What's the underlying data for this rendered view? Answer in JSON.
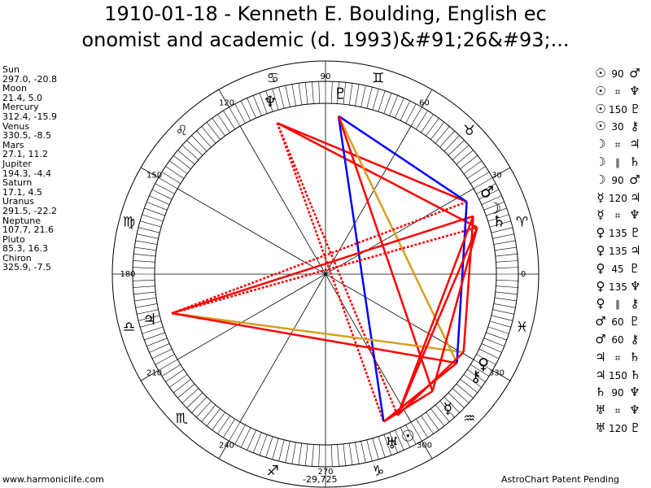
{
  "title_line1": "1910-01-18 - Kenneth E. Boulding, English ec",
  "title_line2": "onomist and academic (d. 1993)&#91;26&#93;...",
  "planets": [
    {
      "name": "Sun",
      "coords": "297.0, -20.8",
      "longitude": 297.0
    },
    {
      "name": "Moon",
      "coords": "21.4, 5.0",
      "longitude": 21.4
    },
    {
      "name": "Mercury",
      "coords": "312.4, -15.9",
      "longitude": 312.4
    },
    {
      "name": "Venus",
      "coords": "330.5, -8.5",
      "longitude": 330.5
    },
    {
      "name": "Mars",
      "coords": "27.1, 11.2",
      "longitude": 27.1
    },
    {
      "name": "Jupiter",
      "coords": "194.3, -4.4",
      "longitude": 194.3
    },
    {
      "name": "Saturn",
      "coords": "17.1, 4.5",
      "longitude": 17.1
    },
    {
      "name": "Uranus",
      "coords": "291.5, -22.2",
      "longitude": 291.5
    },
    {
      "name": "Neptune",
      "coords": "107.7, 21.6",
      "longitude": 107.7
    },
    {
      "name": "Pluto",
      "coords": "85.3, 16.3",
      "longitude": 85.3
    },
    {
      "name": "Chiron",
      "coords": "325.9, -7.5",
      "longitude": 325.9
    }
  ],
  "planet_glyphs": {
    "Sun": "☉",
    "Moon": "☽",
    "Mercury": "☿",
    "Venus": "♀",
    "Mars": "♂",
    "Jupiter": "♃",
    "Saturn": "♄",
    "Uranus": "♅",
    "Neptune": "♆",
    "Pluto": "♇",
    "Chiron": "⚷"
  },
  "aspect_glyphs": {
    "90": "90",
    "150": "150",
    "30": "30",
    "120": "120",
    "135": "135",
    "45": "45",
    "60": "60",
    "par": "⌗",
    "cpar": "∥"
  },
  "aspects": [
    {
      "p1": "Sun",
      "type": "90",
      "p2": "Mars"
    },
    {
      "p1": "Sun",
      "type": "par",
      "p2": "Neptune"
    },
    {
      "p1": "Sun",
      "type": "150",
      "p2": "Pluto"
    },
    {
      "p1": "Sun",
      "type": "30",
      "p2": "Chiron"
    },
    {
      "p1": "Moon",
      "type": "par",
      "p2": "Jupiter"
    },
    {
      "p1": "Moon",
      "type": "cpar",
      "p2": "Saturn"
    },
    {
      "p1": "Moon",
      "type": "90",
      "p2": "Mars"
    },
    {
      "p1": "Mercury",
      "type": "120",
      "p2": "Jupiter"
    },
    {
      "p1": "Mercury",
      "type": "par",
      "p2": "Neptune"
    },
    {
      "p1": "Venus",
      "type": "135",
      "p2": "Pluto"
    },
    {
      "p1": "Venus",
      "type": "135",
      "p2": "Jupiter"
    },
    {
      "p1": "Venus",
      "type": "45",
      "p2": "Pluto"
    },
    {
      "p1": "Venus",
      "type": "135",
      "p2": "Neptune"
    },
    {
      "p1": "Venus",
      "type": "cpar",
      "p2": "Chiron"
    },
    {
      "p1": "Mars",
      "type": "60",
      "p2": "Pluto"
    },
    {
      "p1": "Mars",
      "type": "60",
      "p2": "Chiron"
    },
    {
      "p1": "Jupiter",
      "type": "par",
      "p2": "Saturn"
    },
    {
      "p1": "Jupiter",
      "type": "150",
      "p2": "Saturn"
    },
    {
      "p1": "Saturn",
      "type": "90",
      "p2": "Neptune"
    },
    {
      "p1": "Uranus",
      "type": "par",
      "p2": "Neptune"
    },
    {
      "p1": "Uranus",
      "type": "120",
      "p2": "Pluto"
    }
  ],
  "degree_labels": [
    "0",
    "30",
    "60",
    "90",
    "120",
    "150",
    "180",
    "210",
    "240",
    "270",
    "300",
    "330"
  ],
  "zodiac_glyphs": [
    "♈",
    "♉",
    "♊",
    "♋",
    "♌",
    "♍",
    "♎",
    "♏",
    "♐",
    "♑",
    "♒",
    "♓"
  ],
  "aspect_lines": [
    {
      "a": 107.7,
      "b": 27.1,
      "color": "#ff0000",
      "style": "solid"
    },
    {
      "a": 107.7,
      "b": 17.1,
      "color": "#ff0000",
      "style": "solid"
    },
    {
      "a": 107.7,
      "b": 291.5,
      "color": "#ff0000",
      "style": "dotted"
    },
    {
      "a": 107.7,
      "b": 297.0,
      "color": "#ff0000",
      "style": "dotted"
    },
    {
      "a": 85.3,
      "b": 27.1,
      "color": "#0000ff",
      "style": "solid"
    },
    {
      "a": 85.3,
      "b": 291.5,
      "color": "#0000ff",
      "style": "solid"
    },
    {
      "a": 85.3,
      "b": 325.9,
      "color": "#d4a020",
      "style": "solid"
    },
    {
      "a": 85.3,
      "b": 312.4,
      "color": "#ff0000",
      "style": "solid"
    },
    {
      "a": 194.3,
      "b": 21.4,
      "color": "#ff0000",
      "style": "solid"
    },
    {
      "a": 194.3,
      "b": 17.1,
      "color": "#ff0000",
      "style": "dotted"
    },
    {
      "a": 194.3,
      "b": 27.1,
      "color": "#ff0000",
      "style": "dotted"
    },
    {
      "a": 194.3,
      "b": 330.5,
      "color": "#d4a020",
      "style": "solid"
    },
    {
      "a": 194.3,
      "b": 325.9,
      "color": "#ff0000",
      "style": "solid"
    },
    {
      "a": 27.1,
      "b": 325.9,
      "color": "#0000ff",
      "style": "solid"
    },
    {
      "a": 21.4,
      "b": 297.0,
      "color": "#ff0000",
      "style": "solid"
    },
    {
      "a": 17.1,
      "b": 297.0,
      "color": "#ff0000",
      "style": "solid"
    },
    {
      "a": 17.1,
      "b": 312.4,
      "color": "#ff0000",
      "style": "solid"
    },
    {
      "a": 21.4,
      "b": 330.5,
      "color": "#ff0000",
      "style": "solid"
    },
    {
      "a": 330.5,
      "b": 297.0,
      "color": "#ff0000",
      "style": "solid"
    },
    {
      "a": 325.9,
      "b": 291.5,
      "color": "#ff0000",
      "style": "solid"
    },
    {
      "a": 312.4,
      "b": 291.5,
      "color": "#ff0000",
      "style": "solid"
    }
  ],
  "footer": {
    "left": "www.harmoniclife.com",
    "center": "-29,725",
    "right": "AstroChart Patent Pending"
  }
}
